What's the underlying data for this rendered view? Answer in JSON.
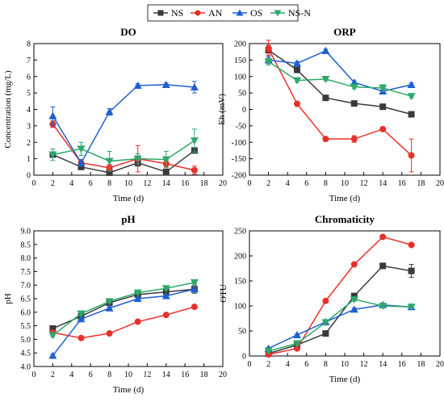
{
  "legend": {
    "items": [
      {
        "key": "NS",
        "label": "NS",
        "color": "#3a3a3a",
        "marker": "square"
      },
      {
        "key": "AN",
        "label": "AN",
        "color": "#e8302a",
        "marker": "circle"
      },
      {
        "key": "OS",
        "label": "OS",
        "color": "#1f5fd1",
        "marker": "triangle-up"
      },
      {
        "key": "NSN",
        "label": "NS-N",
        "color": "#2ea86a",
        "marker": "triangle-down"
      }
    ]
  },
  "chart_data": [
    {
      "id": "do",
      "type": "line",
      "title": "DO",
      "xlabel": "Time (d)",
      "ylabel": "Concentration (mg/L)",
      "xlim": [
        0,
        20
      ],
      "ylim": [
        0,
        8
      ],
      "xticks": [
        0,
        2,
        4,
        6,
        8,
        10,
        12,
        14,
        16,
        18,
        20
      ],
      "yticks": [
        0,
        1,
        2,
        3,
        4,
        5,
        6,
        7,
        8
      ],
      "x": [
        2,
        5,
        8,
        11,
        14,
        17
      ],
      "series": [
        {
          "key": "NS",
          "values": [
            1.25,
            0.5,
            0.15,
            0.75,
            0.2,
            1.5
          ],
          "err": [
            0.1,
            0.1,
            0.1,
            0.2,
            0.1,
            0.1
          ]
        },
        {
          "key": "AN",
          "values": [
            3.1,
            0.75,
            0.45,
            1.0,
            0.7,
            0.3
          ],
          "err": [
            0.2,
            0.2,
            0.2,
            0.8,
            0.2,
            0.25
          ]
        },
        {
          "key": "OS",
          "values": [
            3.6,
            0.75,
            3.85,
            5.45,
            5.5,
            5.35
          ],
          "err": [
            0.55,
            0.2,
            0.2,
            0.1,
            0.1,
            0.35
          ]
        },
        {
          "key": "NSN",
          "values": [
            1.25,
            1.6,
            0.85,
            1.0,
            0.95,
            2.1
          ],
          "err": [
            0.35,
            0.4,
            0.6,
            0.3,
            0.5,
            0.7
          ]
        }
      ]
    },
    {
      "id": "orp",
      "type": "line",
      "title": "ORP",
      "xlabel": "Time (d)",
      "ylabel": "Eh (mV)",
      "xlim": [
        0,
        20
      ],
      "ylim": [
        -200,
        200
      ],
      "xticks": [
        0,
        2,
        4,
        6,
        8,
        10,
        12,
        14,
        16,
        18,
        20
      ],
      "yticks": [
        -200,
        -150,
        -100,
        -50,
        0,
        50,
        100,
        150,
        200
      ],
      "x": [
        2,
        5,
        8,
        11,
        14,
        17
      ],
      "series": [
        {
          "key": "NS",
          "values": [
            180,
            120,
            35,
            18,
            8,
            -15
          ],
          "err": [
            15,
            5,
            5,
            5,
            5,
            5
          ]
        },
        {
          "key": "AN",
          "values": [
            185,
            17,
            -90,
            -90,
            -60,
            -140
          ],
          "err": [
            25,
            5,
            5,
            10,
            5,
            50
          ]
        },
        {
          "key": "OS",
          "values": [
            150,
            140,
            178,
            82,
            55,
            75
          ],
          "err": [
            10,
            5,
            5,
            5,
            5,
            5
          ]
        },
        {
          "key": "NSN",
          "values": [
            145,
            88,
            92,
            68,
            65,
            40
          ],
          "err": [
            10,
            5,
            5,
            5,
            10,
            5
          ]
        }
      ]
    },
    {
      "id": "ph",
      "type": "line",
      "title": "pH",
      "xlabel": "Time (d)",
      "ylabel": "pH",
      "xlim": [
        0,
        20
      ],
      "ylim": [
        4.0,
        9.0
      ],
      "xticks": [
        0,
        2,
        4,
        6,
        8,
        10,
        12,
        14,
        16,
        18,
        20
      ],
      "yticks": [
        4.0,
        4.5,
        5.0,
        5.5,
        6.0,
        6.5,
        7.0,
        7.5,
        8.0,
        8.5,
        9.0
      ],
      "x": [
        2,
        5,
        8,
        11,
        14,
        17
      ],
      "series": [
        {
          "key": "NS",
          "values": [
            5.4,
            5.85,
            6.35,
            6.65,
            6.75,
            6.85
          ],
          "err": [
            0.05,
            0.05,
            0.05,
            0.05,
            0.05,
            0.15
          ]
        },
        {
          "key": "AN",
          "values": [
            5.25,
            5.05,
            5.22,
            5.65,
            5.9,
            6.2
          ],
          "err": [
            0.05,
            0.05,
            0.05,
            0.05,
            0.05,
            0.05
          ]
        },
        {
          "key": "OS",
          "values": [
            4.4,
            5.75,
            6.15,
            6.5,
            6.6,
            6.85
          ],
          "err": [
            0.05,
            0.05,
            0.05,
            0.05,
            0.05,
            0.05
          ]
        },
        {
          "key": "NSN",
          "values": [
            5.15,
            5.95,
            6.4,
            6.72,
            6.88,
            7.1
          ],
          "err": [
            0.05,
            0.05,
            0.05,
            0.05,
            0.05,
            0.05
          ]
        }
      ]
    },
    {
      "id": "chromaticity",
      "type": "line",
      "title": "Chromaticity",
      "xlabel": "Time (d)",
      "ylabel": "OTU",
      "xlim": [
        0,
        20
      ],
      "ylim": [
        0,
        250
      ],
      "xticks": [
        0,
        2,
        4,
        6,
        8,
        10,
        12,
        14,
        16,
        18,
        20
      ],
      "yticks": [
        0,
        50,
        100,
        150,
        200,
        250
      ],
      "x": [
        2,
        5,
        8,
        11,
        14,
        17
      ],
      "series": [
        {
          "key": "NS",
          "values": [
            5,
            22,
            45,
            120,
            180,
            170
          ],
          "err": [
            2,
            2,
            3,
            3,
            3,
            13
          ]
        },
        {
          "key": "AN",
          "values": [
            3,
            15,
            110,
            183,
            238,
            222
          ],
          "err": [
            2,
            2,
            3,
            3,
            3,
            3
          ]
        },
        {
          "key": "OS",
          "values": [
            15,
            42,
            68,
            93,
            102,
            98
          ],
          "err": [
            2,
            2,
            3,
            3,
            3,
            3
          ]
        },
        {
          "key": "NSN",
          "values": [
            10,
            25,
            67,
            113,
            100,
            98
          ],
          "err": [
            2,
            2,
            3,
            3,
            3,
            3
          ]
        }
      ]
    }
  ]
}
